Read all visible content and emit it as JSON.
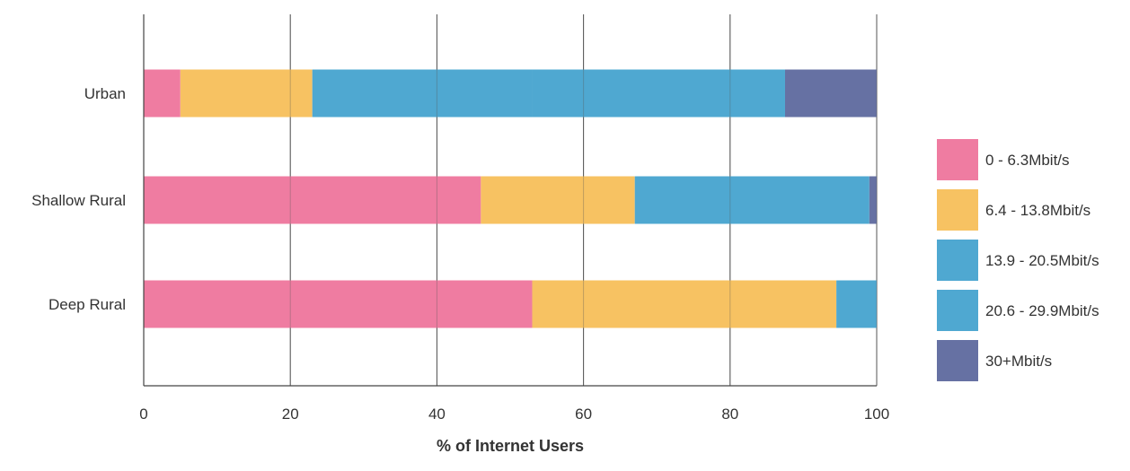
{
  "chart_data": {
    "type": "bar",
    "orientation": "horizontal",
    "stacked": true,
    "categories": [
      "Urban",
      "Shallow Rural",
      "Deep Rural"
    ],
    "series": [
      {
        "name": "0 - 6.3Mbit/s",
        "color": "#EF7CA1",
        "values": [
          5,
          46,
          53
        ]
      },
      {
        "name": "6.4 - 13.8Mbit/s",
        "color": "#F7C262",
        "values": [
          18,
          21,
          41.5
        ]
      },
      {
        "name": "13.9 - 20.5Mbit/s",
        "color": "#4FA8D1",
        "values": [
          30,
          20.5,
          5.5
        ]
      },
      {
        "name": "20.6 - 29.9Mbit/s",
        "color": "#4FA8D1",
        "values": [
          34.5,
          11.5,
          0
        ]
      },
      {
        "name": "30+Mbit/s",
        "color": "#6671A3",
        "values": [
          12.5,
          1,
          0
        ]
      }
    ],
    "x_ticks": [
      "0",
      "20",
      "40",
      "60",
      "80",
      "100"
    ],
    "xlabel": "% of Internet Users",
    "ylabel": "",
    "xlim": [
      0,
      100
    ],
    "grid": "vertical",
    "legend_position": "right"
  }
}
